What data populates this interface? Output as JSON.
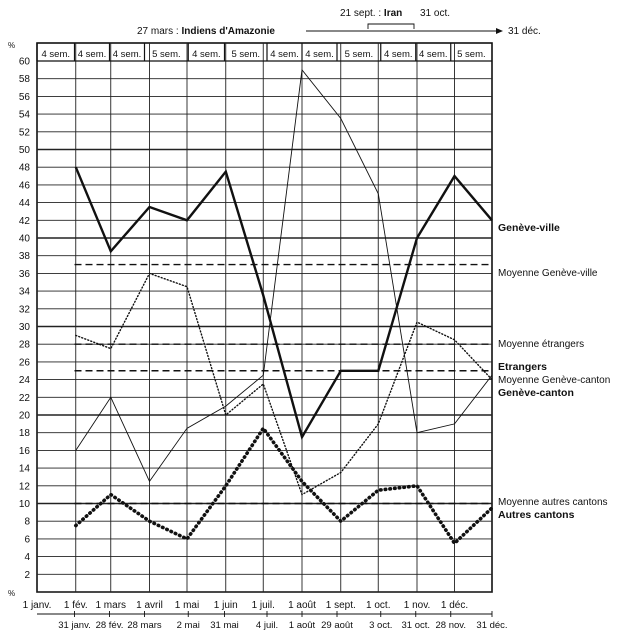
{
  "chart_data": {
    "type": "line",
    "ylabel": "%",
    "ylabel_bottom": "%",
    "ylim": [
      0,
      60
    ],
    "yticks": [
      0,
      2,
      4,
      6,
      8,
      10,
      12,
      14,
      16,
      18,
      20,
      22,
      24,
      26,
      28,
      30,
      32,
      34,
      36,
      38,
      40,
      42,
      44,
      46,
      48,
      50,
      52,
      54,
      56,
      58,
      60
    ],
    "x_domain": [
      "1979-01-01",
      "1979-12-31"
    ],
    "month_starts": [
      {
        "date": "1979-01-01",
        "label": "1 janv."
      },
      {
        "date": "1979-02-01",
        "label": "1 fév."
      },
      {
        "date": "1979-03-01",
        "label": "1 mars"
      },
      {
        "date": "1979-04-01",
        "label": "1 avril"
      },
      {
        "date": "1979-05-01",
        "label": "1 mai"
      },
      {
        "date": "1979-06-01",
        "label": "1 juin"
      },
      {
        "date": "1979-07-01",
        "label": "1 juil."
      },
      {
        "date": "1979-08-01",
        "label": "1 août"
      },
      {
        "date": "1979-09-01",
        "label": "1 sept."
      },
      {
        "date": "1979-10-01",
        "label": "1 oct."
      },
      {
        "date": "1979-11-01",
        "label": "1 nov."
      },
      {
        "date": "1979-12-01",
        "label": "1 déc."
      }
    ],
    "bottom_dates": [
      {
        "date": "1979-01-31",
        "label": "31 janv."
      },
      {
        "date": "1979-02-28",
        "label": "28 fév."
      },
      {
        "date": "1979-03-28",
        "label": "28 mars"
      },
      {
        "date": "1979-05-02",
        "label": "2 mai"
      },
      {
        "date": "1979-05-31",
        "label": "31 mai"
      },
      {
        "date": "1979-07-04",
        "label": "4 juil."
      },
      {
        "date": "1979-08-01",
        "label": "1 août"
      },
      {
        "date": "1979-08-29",
        "label": "29 août"
      },
      {
        "date": "1979-10-03",
        "label": "3 oct."
      },
      {
        "date": "1979-10-31",
        "label": "31 oct."
      },
      {
        "date": "1979-11-28",
        "label": "28 nov."
      },
      {
        "date": "1979-12-31",
        "label": "31 déc."
      }
    ],
    "periods": [
      {
        "start": "1979-01-01",
        "end": "1979-01-31",
        "label": "4 sem."
      },
      {
        "start": "1979-01-31",
        "end": "1979-02-28",
        "label": "4 sem."
      },
      {
        "start": "1979-02-28",
        "end": "1979-03-28",
        "label": "4 sem."
      },
      {
        "start": "1979-03-28",
        "end": "1979-05-02",
        "label": "5 sem."
      },
      {
        "start": "1979-05-02",
        "end": "1979-05-31",
        "label": "4 sem."
      },
      {
        "start": "1979-05-31",
        "end": "1979-07-04",
        "label": "5 sem."
      },
      {
        "start": "1979-07-04",
        "end": "1979-08-01",
        "label": "4 sem."
      },
      {
        "start": "1979-08-01",
        "end": "1979-08-29",
        "label": "4 sem."
      },
      {
        "start": "1979-08-29",
        "end": "1979-10-03",
        "label": "5 sem."
      },
      {
        "start": "1979-10-03",
        "end": "1979-10-31",
        "label": "4 sem."
      },
      {
        "start": "1979-10-31",
        "end": "1979-11-28",
        "label": "4 sem."
      },
      {
        "start": "1979-11-28",
        "end": "1979-12-31",
        "label": "5 sem."
      }
    ],
    "x_dates": [
      "1979-02-01",
      "1979-03-01",
      "1979-04-01",
      "1979-05-01",
      "1979-06-01",
      "1979-07-01",
      "1979-08-01",
      "1979-09-01",
      "1979-10-01",
      "1979-11-01",
      "1979-12-01",
      "1979-12-31"
    ],
    "series": [
      {
        "name": "Genève-ville",
        "style": "bold",
        "values": [
          48,
          38.5,
          43.5,
          42,
          47.5,
          33.5,
          17.5,
          25,
          25,
          40,
          47,
          42
        ]
      },
      {
        "name": "Etrangers",
        "style": "thin",
        "values": [
          16,
          22,
          12.5,
          18.5,
          21,
          24.5,
          59,
          53.5,
          45,
          18,
          19,
          24.5
        ]
      },
      {
        "name": "Genève-canton",
        "style": "dotted",
        "values": [
          29,
          27.5,
          36,
          34.5,
          20,
          23.5,
          11,
          13.5,
          19,
          30.5,
          28.5,
          24
        ]
      },
      {
        "name": "Autres cantons",
        "style": "heavy-dotted",
        "values": [
          7.5,
          11,
          8,
          6,
          12,
          18.5,
          12.5,
          8,
          11.5,
          12,
          5.5,
          9.5
        ]
      }
    ],
    "averages": [
      {
        "label": "Moyenne Genève-ville",
        "value": 37
      },
      {
        "label": "Moyenne étrangers",
        "value": 28
      },
      {
        "label": "Moyenne Genève-canton",
        "value": 25
      },
      {
        "label": "Moyenne autres cantons",
        "value": 10
      }
    ],
    "annotations": [
      {
        "label": "27 mars :",
        "bold_label": "Indiens d'Amazonie",
        "date": "1979-03-27",
        "end_date": "1979-12-31",
        "end_label": "31 déc."
      },
      {
        "label": "21 sept. :",
        "bold_label": "Iran",
        "start": "1979-09-21",
        "end": "1979-10-31",
        "end_label": "31 oct."
      }
    ]
  }
}
